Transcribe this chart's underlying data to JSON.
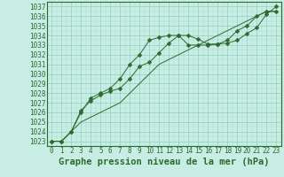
{
  "title": "Graphe pression niveau de la mer (hPa)",
  "x_labels": [
    0,
    1,
    2,
    3,
    4,
    5,
    6,
    7,
    8,
    9,
    10,
    11,
    12,
    13,
    14,
    15,
    16,
    17,
    18,
    19,
    20,
    21,
    22,
    23
  ],
  "ylim": [
    1022.5,
    1037.5
  ],
  "yticks": [
    1023,
    1024,
    1025,
    1026,
    1027,
    1028,
    1029,
    1030,
    1031,
    1032,
    1033,
    1034,
    1035,
    1036,
    1037
  ],
  "line1_x": [
    0,
    1,
    2,
    3,
    4,
    5,
    6,
    7,
    8,
    9,
    10,
    11,
    12,
    13,
    14,
    15,
    16,
    17,
    18,
    19,
    20,
    21,
    22,
    23
  ],
  "line1_y": [
    1023,
    1023,
    1024,
    1026.2,
    1027.2,
    1027.8,
    1028.2,
    1028.5,
    1029.5,
    1030.8,
    1031.2,
    1032.2,
    1033.2,
    1034.0,
    1034.0,
    1033.6,
    1033.1,
    1033.1,
    1033.2,
    1033.5,
    1034.2,
    1034.8,
    1036.2,
    1037.0
  ],
  "line2_x": [
    0,
    1,
    2,
    3,
    4,
    5,
    6,
    7,
    8,
    9,
    10,
    11,
    12,
    13,
    14,
    15,
    16,
    17,
    18,
    19,
    20,
    21,
    22,
    23
  ],
  "line2_y": [
    1023,
    1023,
    1024,
    1026.0,
    1027.5,
    1028.0,
    1028.5,
    1029.5,
    1031.0,
    1032.0,
    1033.5,
    1033.8,
    1034.0,
    1034.0,
    1033.0,
    1033.0,
    1033.0,
    1033.1,
    1033.5,
    1034.5,
    1035.0,
    1036.0,
    1036.5,
    1036.5
  ],
  "line3_x": [
    0,
    1,
    2,
    3,
    4,
    5,
    6,
    7,
    8,
    9,
    10,
    11,
    12,
    13,
    14,
    15,
    16,
    17,
    18,
    19,
    20,
    21,
    22,
    23
  ],
  "line3_y": [
    1023,
    1023,
    1024,
    1025.0,
    1025.5,
    1026.0,
    1026.5,
    1027.0,
    1028.0,
    1029.0,
    1030.0,
    1031.0,
    1031.5,
    1032.0,
    1032.5,
    1033.0,
    1033.5,
    1034.0,
    1034.5,
    1035.0,
    1035.5,
    1036.0,
    1036.5,
    1036.5
  ],
  "line_color": "#2d6a2d",
  "bg_color": "#c8ede4",
  "grid_major_color": "#8ecfbe",
  "grid_minor_color": "#a8ddd0",
  "marker_size": 2.5,
  "title_fontsize": 7.5,
  "tick_fontsize": 5.5
}
